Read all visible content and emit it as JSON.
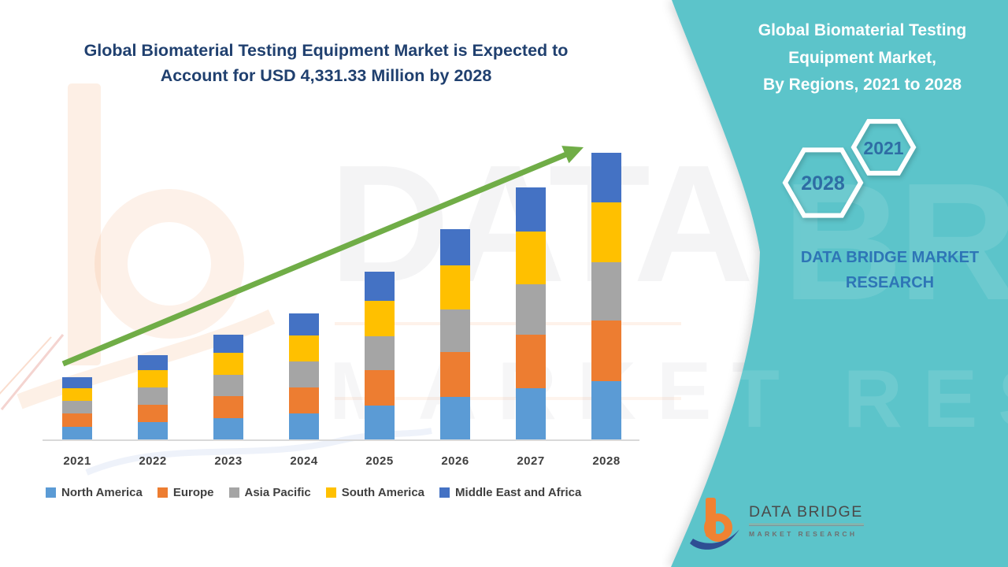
{
  "title": {
    "line1": "Global Biomaterial Testing Equipment Market is Expected to",
    "line2": "Account for USD 4,331.33 Million by 2028"
  },
  "panel": {
    "title_lines": [
      "Global Biomaterial Testing",
      "Equipment Market,",
      "By Regions, 2021 to 2028"
    ],
    "hexagons": [
      {
        "label": "2028"
      },
      {
        "label": "2021"
      }
    ],
    "brand_line1": "DATA BRIDGE MARKET",
    "brand_line2": "RESEARCH",
    "accent_color": "#5CC4CA",
    "hex_label_color": "#2E6DA4"
  },
  "logo": {
    "name": "DATA BRIDGE",
    "subtitle": "MARKET RESEARCH"
  },
  "watermark": {
    "big": "DATA BRIDGE",
    "row2": "MARKET RESEARCH"
  },
  "chart_data": {
    "type": "bar",
    "stacked": true,
    "unit": "USD Million",
    "title": "Global Biomaterial Testing Equipment Market, By Regions, 2021 to 2028",
    "categories": [
      "2021",
      "2022",
      "2023",
      "2024",
      "2025",
      "2026",
      "2027",
      "2028"
    ],
    "series": [
      {
        "name": "North America",
        "color": "#5B9BD5",
        "values": [
          191,
          258,
          321,
          387,
          515,
          645,
          773,
          879
        ]
      },
      {
        "name": "Europe",
        "color": "#ED7D31",
        "values": [
          199,
          270,
          336,
          404,
          537,
          674,
          807,
          918
        ]
      },
      {
        "name": "Asia Pacific",
        "color": "#A5A5A5",
        "values": [
          190,
          257,
          320,
          385,
          512,
          642,
          769,
          875
        ]
      },
      {
        "name": "South America",
        "color": "#FFC000",
        "values": [
          196,
          266,
          331,
          398,
          530,
          664,
          796,
          905
        ]
      },
      {
        "name": "Middle East and Africa",
        "color": "#4472C4",
        "values": [
          164,
          222,
          275,
          331,
          441,
          553,
          663,
          754.33
        ]
      }
    ],
    "totals": [
      940,
      1273,
      1583,
      1905,
      2535,
      3178,
      3808,
      4331.33
    ],
    "ylim": [
      0,
      4500
    ],
    "grid": false,
    "y_axis_visible": false,
    "legend_position": "bottom",
    "trend_arrow_color": "#70AD47"
  }
}
